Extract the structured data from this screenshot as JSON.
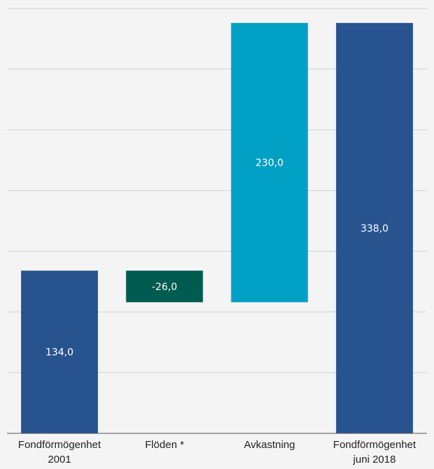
{
  "chart_data": {
    "type": "bar",
    "subtype": "waterfall",
    "categories": [
      [
        "Fondförmögenhet",
        "2001"
      ],
      [
        "Flöden *"
      ],
      [
        "Avkastning"
      ],
      [
        "Fondförmögenhet",
        "juni 2018"
      ]
    ],
    "values": [
      134.0,
      -26.0,
      230.0,
      338.0
    ],
    "value_labels": [
      "134,0",
      "-26,0",
      "230,0",
      "338,0"
    ],
    "bar_kind": [
      "total",
      "delta",
      "delta",
      "total"
    ],
    "ylim": [
      0,
      350
    ],
    "grid": true,
    "y_ticks_shown": false,
    "legend": "none",
    "colors": {
      "total": "#27538f",
      "negative": "#005b50",
      "positive": "#00a0c4",
      "grid": "#cfcfcf",
      "background": "#f5f4f4"
    }
  }
}
